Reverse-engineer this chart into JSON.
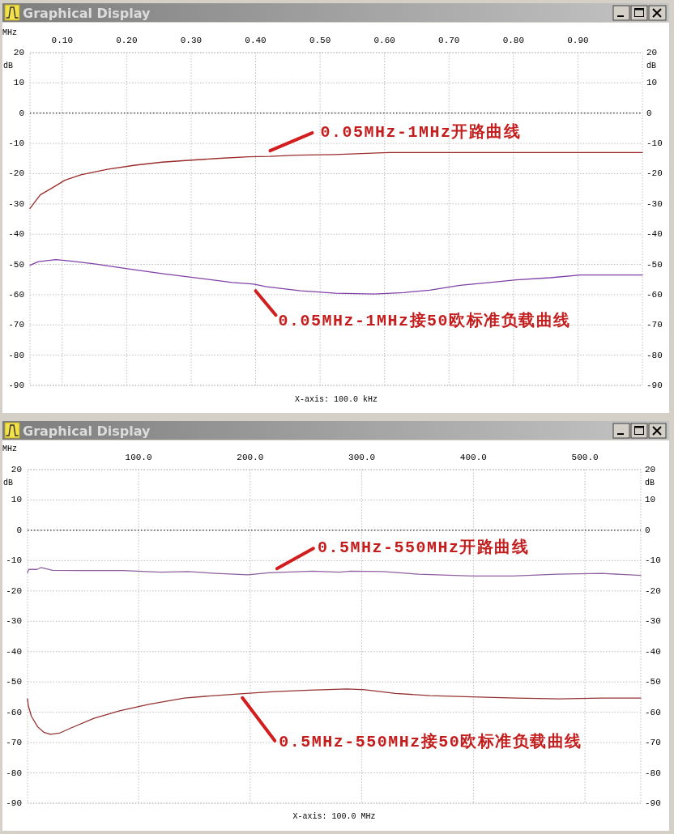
{
  "chart_data": [
    {
      "type": "line",
      "title": "Graphical Display",
      "xlabel": "MHz",
      "ylabel": "dB",
      "y2label": "dB",
      "annotations": [
        {
          "text": "0.05MHz-1MHz开路曲线",
          "x": 0.42,
          "y": -14.3
        },
        {
          "text": "0.05MHz-1MHz接50欧标准负载曲线",
          "x": 0.4,
          "y": -56.6
        },
        "X-axis: 100.0 kHz"
      ],
      "series": [
        {
          "color": "#9b2a2a",
          "x": [
            0.05,
            0.066,
            0.087,
            0.104,
            0.129,
            0.17,
            0.213,
            0.255,
            0.296,
            0.339,
            0.389,
            0.422,
            0.464,
            0.523,
            0.573,
            0.607,
            0.758,
            1.0
          ],
          "values": [
            -31.5,
            -27,
            -24.4,
            -22.2,
            -20.4,
            -18.6,
            -17.2,
            -16.2,
            -15.6,
            -15.0,
            -14.4,
            -14.3,
            -13.9,
            -13.7,
            -13.3,
            -13.0,
            -13.0,
            -13.0
          ]
        },
        {
          "color": "#8040a8",
          "x": [
            0.05,
            0.063,
            0.09,
            0.11,
            0.15,
            0.203,
            0.257,
            0.31,
            0.364,
            0.397,
            0.417,
            0.47,
            0.524,
            0.584,
            0.63,
            0.67,
            0.717,
            0.757,
            0.804,
            0.857,
            0.904,
            0.95,
            1.0
          ],
          "values": [
            -50.3,
            -49.1,
            -48.4,
            -48.8,
            -49.8,
            -51.5,
            -53.1,
            -54.5,
            -56.0,
            -56.5,
            -57.4,
            -58.7,
            -59.5,
            -59.8,
            -59.3,
            -58.5,
            -56.9,
            -56.1,
            -55.1,
            -54.4,
            -53.5,
            -53.5,
            -53.5
          ]
        }
      ],
      "xlim": [
        0.05,
        1.0
      ],
      "xticks": [
        {
          "value": 0.1,
          "label": "0.10"
        },
        {
          "value": 0.2,
          "label": "0.20"
        },
        {
          "value": 0.3,
          "label": "0.30"
        },
        {
          "value": 0.4,
          "label": "0.40"
        },
        {
          "value": 0.5,
          "label": "0.50"
        },
        {
          "value": 0.6,
          "label": "0.60"
        },
        {
          "value": 0.7,
          "label": "0.70"
        },
        {
          "value": 0.8,
          "label": "0.80"
        },
        {
          "value": 0.9,
          "label": "0.90"
        }
      ],
      "ylim": [
        -90,
        20
      ],
      "yticks": [
        20,
        10,
        0,
        -10,
        -20,
        -30,
        -40,
        -50,
        -60,
        -70,
        -80,
        -90
      ],
      "y2lim": [
        -90,
        20
      ],
      "y2ticks": [
        20,
        10,
        0,
        -10,
        -20,
        -30,
        -40,
        -50,
        -60,
        -70,
        -80,
        -90
      ],
      "grid": true,
      "line_style": "solid",
      "ref_lines": [
        {
          "axis": "y",
          "value": 0,
          "color": "#000000",
          "line_style": "dotted"
        }
      ]
    },
    {
      "type": "line",
      "title": "Graphical Display",
      "xlabel": "MHz",
      "ylabel": "dB",
      "y2label": "dB",
      "annotations": [
        {
          "text": "0.5MHz-550MHz开路曲线",
          "x": 224,
          "y": -14.0
        },
        {
          "text": "0.5MHz-550MHz接50欧标准负载曲线",
          "x": 193,
          "y": -53.9
        },
        "X-axis: 100.0 MHz"
      ],
      "series": [
        {
          "color": "#8f5f9f",
          "x": [
            0.5,
            1.6,
            9,
            12.5,
            23,
            48,
            86,
            120,
            144,
            169,
            198,
            217,
            256,
            280,
            290,
            319,
            351,
            399,
            435,
            475,
            515,
            550
          ],
          "values": [
            -14.0,
            -12.9,
            -12.9,
            -12.3,
            -13.2,
            -13.3,
            -13.3,
            -13.8,
            -13.6,
            -14.2,
            -14.7,
            -14.0,
            -13.5,
            -13.8,
            -13.5,
            -13.6,
            -14.5,
            -15.1,
            -15.1,
            -14.5,
            -14.2,
            -14.9
          ]
        },
        {
          "color": "#943232",
          "x": [
            0.5,
            1.1,
            3.9,
            9.6,
            15,
            21,
            29,
            40,
            60,
            83,
            110,
            141,
            168,
            191,
            222,
            253,
            287,
            303,
            330,
            361,
            399,
            438,
            477,
            515,
            550
          ],
          "values": [
            -55.6,
            -57.7,
            -61.3,
            -64.8,
            -66.6,
            -67.3,
            -66.9,
            -65.1,
            -62.0,
            -59.5,
            -57.3,
            -55.3,
            -54.5,
            -53.9,
            -53.2,
            -52.7,
            -52.3,
            -52.6,
            -53.8,
            -54.5,
            -54.9,
            -55.3,
            -55.6,
            -55.3,
            -55.3
          ]
        }
      ],
      "xlim": [
        0.5,
        550
      ],
      "xticks": [
        {
          "value": 100,
          "label": "100.0"
        },
        {
          "value": 200,
          "label": "200.0"
        },
        {
          "value": 300,
          "label": "300.0"
        },
        {
          "value": 400,
          "label": "400.0"
        },
        {
          "value": 500,
          "label": "500.0"
        }
      ],
      "ylim": [
        -90,
        20
      ],
      "yticks": [
        20,
        10,
        0,
        -10,
        -20,
        -30,
        -40,
        -50,
        -60,
        -70,
        -80,
        -90
      ],
      "y2lim": [
        -90,
        20
      ],
      "y2ticks": [
        20,
        10,
        0,
        -10,
        -20,
        -30,
        -40,
        -50,
        -60,
        -70,
        -80,
        -90
      ],
      "grid": true,
      "line_style": "solid",
      "ref_lines": [
        {
          "axis": "y",
          "value": 0,
          "color": "#000000",
          "line_style": "dotted"
        }
      ]
    }
  ]
}
